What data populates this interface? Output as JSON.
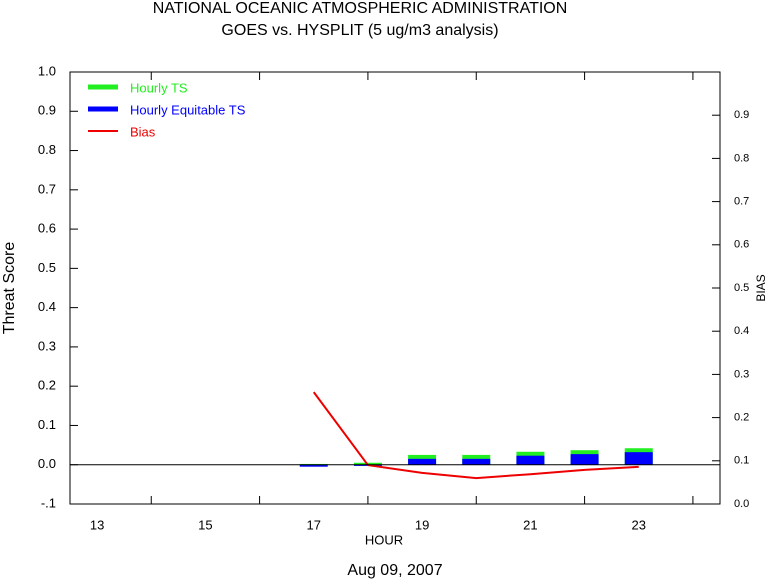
{
  "chart_data": {
    "type": "bar",
    "title": [
      "NATIONAL OCEANIC ATMOSPHERIC ADMINISTRATION",
      "GOES vs. HYSPLIT  (5 ug/m3 analysis)"
    ],
    "ylabel": "Threat Score",
    "y2label": "BIAS",
    "xlabel": "HOUR",
    "date": "Aug 09, 2007",
    "x": [
      17,
      18,
      19,
      20,
      21,
      22,
      23
    ],
    "series": [
      {
        "name": "Hourly TS",
        "color": "#22ee22",
        "type": "bar",
        "values": [
          0.002,
          0.005,
          0.025,
          0.025,
          0.033,
          0.037,
          0.042
        ]
      },
      {
        "name": "Hourly Equitable TS",
        "color": "#0000ff",
        "type": "bar",
        "values": [
          -0.005,
          -0.003,
          0.015,
          0.015,
          0.023,
          0.027,
          0.032
        ]
      },
      {
        "name": "Bias",
        "color": "#ee0000",
        "type": "line",
        "axis": "y2",
        "values": [
          0.259,
          0.09,
          0.072,
          0.06,
          0.069,
          0.079,
          0.086
        ]
      }
    ],
    "xlim": [
      12.5,
      24.5
    ],
    "xticks": [
      13,
      15,
      17,
      19,
      21,
      23
    ],
    "xminorticks": [
      14,
      16,
      18,
      20,
      22,
      24
    ],
    "ylim": [
      -0.1,
      1.0
    ],
    "yticks": [
      {
        "value": -0.1,
        "label": "-.1"
      },
      {
        "value": 0,
        "label": "0.0"
      },
      0.1,
      0.2,
      0.3,
      0.4,
      0.5,
      0.6,
      0.7,
      0.8,
      0.9,
      {
        "value": 1,
        "label": "1.0"
      }
    ],
    "y2lim": [
      0,
      1.0
    ],
    "y2ticks": [
      {
        "value": 0,
        "label": "0.0"
      },
      0.1,
      0.2,
      0.3,
      0.4,
      0.5,
      0.6,
      0.7,
      0.8,
      0.9
    ],
    "zero_line": true
  }
}
